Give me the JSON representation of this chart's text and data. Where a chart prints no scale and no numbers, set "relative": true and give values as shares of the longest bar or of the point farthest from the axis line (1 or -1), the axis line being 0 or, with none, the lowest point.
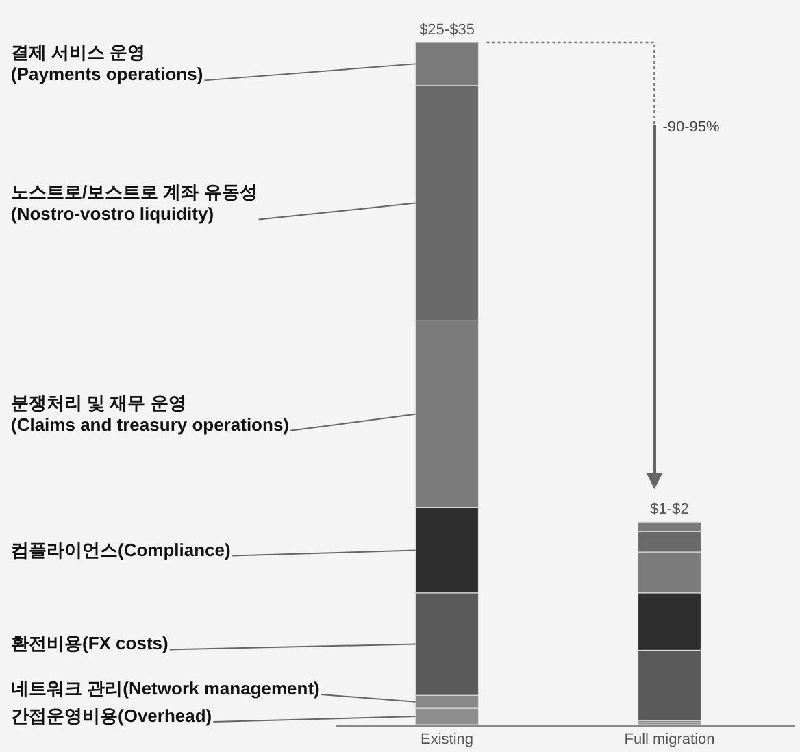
{
  "chart_data": {
    "type": "bar",
    "stacked": true,
    "relative": true,
    "legend": false,
    "categories": [
      "Existing",
      "Full migration"
    ],
    "series": [
      {
        "name": "간접운영비용(Overhead)",
        "color": "#8e8e8e",
        "values": [
          0.024,
          0.003
        ]
      },
      {
        "name": "네트워크 관리(Network management)",
        "color": "#888888",
        "values": [
          0.019,
          0.003
        ]
      },
      {
        "name": "환전비용(FX costs)",
        "color": "#5a5a5a",
        "values": [
          0.15,
          0.103
        ]
      },
      {
        "name": "컴플라이언스(Compliance)",
        "color": "#2e2e2e",
        "values": [
          0.125,
          0.084
        ]
      },
      {
        "name": "분쟁처리 및 재무 운영\n(Claims and treasury operations)",
        "color": "#7b7b7b",
        "values": [
          0.274,
          0.06
        ]
      },
      {
        "name": "노스트로/보스트로 계좌 유동성\n(Nostro-vostro liquidity)",
        "color": "#6a6a6a",
        "values": [
          0.345,
          0.03
        ]
      },
      {
        "name": "결제 서비스 운영\n(Payments operations)",
        "color": "#7a7a7a",
        "values": [
          0.063,
          0.014
        ]
      }
    ],
    "totals": [
      "$25-$35",
      "$1-$2"
    ],
    "annotations": [
      "-90-95%"
    ]
  }
}
